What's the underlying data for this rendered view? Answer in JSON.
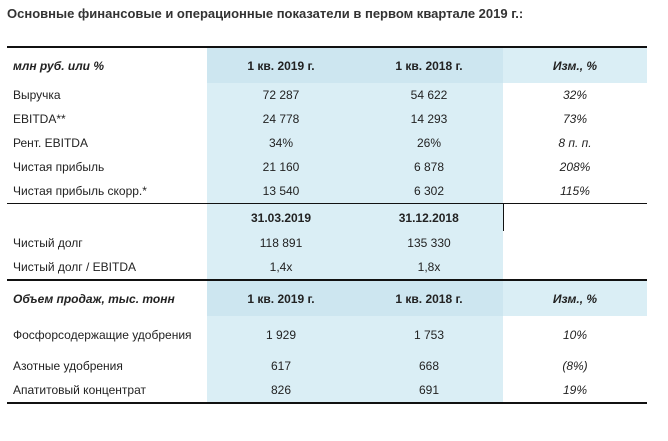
{
  "title": "Основные финансовые и операционные показатели в первом квартале 2019 г.:",
  "fin_header": [
    "млн руб. или %",
    "1 кв. 2019 г.",
    "1 кв. 2018 г.",
    "Изм., %"
  ],
  "fin_rows": [
    [
      "Выручка",
      "72 287",
      "54 622",
      "32%"
    ],
    [
      "EBITDA**",
      "24 778",
      "14 293",
      "73%"
    ],
    [
      "Рент. EBITDA",
      "34%",
      "26%",
      "8 п. п."
    ],
    [
      "Чистая прибыль",
      "21 160",
      "6 878",
      "208%"
    ],
    [
      "Чистая прибыль скорр.*",
      "13 540",
      "6 302",
      "115%"
    ]
  ],
  "debt_header": [
    "",
    "31.03.2019",
    "31.12.2018",
    ""
  ],
  "debt_rows": [
    [
      "Чистый долг",
      "118 891",
      "135 330",
      ""
    ],
    [
      "Чистый долг / EBITDA",
      "1,4x",
      "1,8x",
      ""
    ]
  ],
  "sales_header": [
    "Объем продаж, тыс. тонн",
    "1 кв. 2019 г.",
    "1 кв. 2018 г.",
    "Изм., %"
  ],
  "sales_rows": [
    [
      "Фосфорсодержащие удобрения",
      "1 929",
      "1 753",
      "10%"
    ],
    [
      "Азотные удобрения",
      "617",
      "668",
      "(8%)"
    ],
    [
      "Апатитовый концентрат",
      "826",
      "691",
      "19%"
    ]
  ]
}
